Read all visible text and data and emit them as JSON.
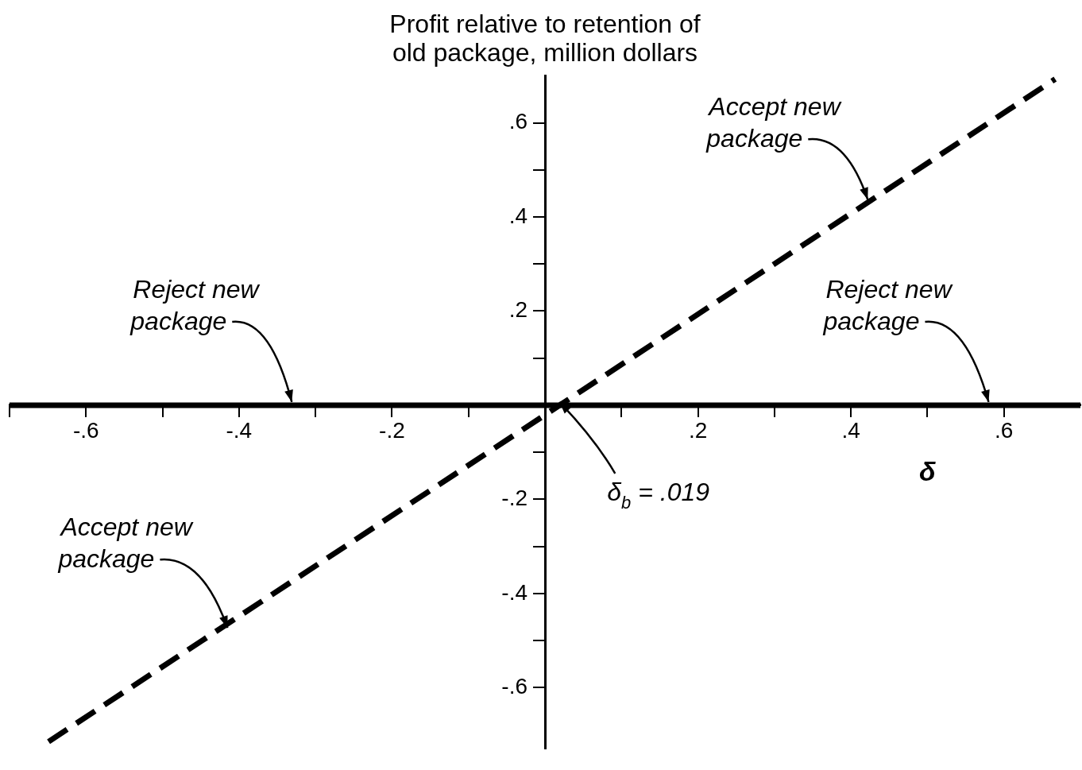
{
  "chart_data": {
    "type": "line",
    "ylabel": "Profit relative to retention of\nold package, million dollars",
    "xlabel": "δ",
    "xlim": [
      -0.7,
      0.7
    ],
    "ylim": [
      -0.73,
      0.7
    ],
    "xticks": [
      {
        "value": -0.7,
        "label": null
      },
      {
        "value": -0.6,
        "label": "-.6"
      },
      {
        "value": -0.5,
        "label": null
      },
      {
        "value": -0.4,
        "label": "-.4"
      },
      {
        "value": -0.3,
        "label": null
      },
      {
        "value": -0.2,
        "label": "-.2"
      },
      {
        "value": -0.1,
        "label": null
      },
      {
        "value": 0.1,
        "label": null
      },
      {
        "value": 0.2,
        "label": ".2"
      },
      {
        "value": 0.3,
        "label": null
      },
      {
        "value": 0.4,
        "label": ".4"
      },
      {
        "value": 0.5,
        "label": null
      },
      {
        "value": 0.6,
        "label": ".6"
      }
    ],
    "yticks": [
      {
        "value": -0.6,
        "label": "-.6"
      },
      {
        "value": -0.5,
        "label": null
      },
      {
        "value": -0.4,
        "label": "-.4"
      },
      {
        "value": -0.3,
        "label": null
      },
      {
        "value": -0.2,
        "label": "-.2"
      },
      {
        "value": -0.1,
        "label": null
      },
      {
        "value": 0.1,
        "label": null
      },
      {
        "value": 0.2,
        "label": ".2"
      },
      {
        "value": 0.3,
        "label": null
      },
      {
        "value": 0.4,
        "label": ".4"
      },
      {
        "value": 0.5,
        "label": null
      },
      {
        "value": 0.6,
        "label": ".6"
      }
    ],
    "series": [
      {
        "color": "#000000",
        "x": [
          -0.649,
          0.667
        ],
        "values": [
          -0.715,
          0.693
        ],
        "line_style": "dashed"
      }
    ],
    "ref_lines": [
      {
        "axis": "y",
        "value": 0,
        "color": "#000000",
        "line_style": "solid"
      }
    ],
    "annotations": [
      {
        "text": "Accept new\npackage",
        "x": 0.422,
        "y": 0.43
      },
      {
        "text": "Reject new\npackage",
        "x": -0.331,
        "y": 0
      },
      {
        "text": "Reject new\npackage",
        "x": 0.58,
        "y": 0
      },
      {
        "text": "δ$_{b}$ = .019",
        "x": 0.019,
        "y": 0
      },
      {
        "text": "Accept new\npackage",
        "x": -0.415,
        "y": -0.48
      }
    ],
    "marker": "none",
    "grid": false,
    "legend": false
  }
}
